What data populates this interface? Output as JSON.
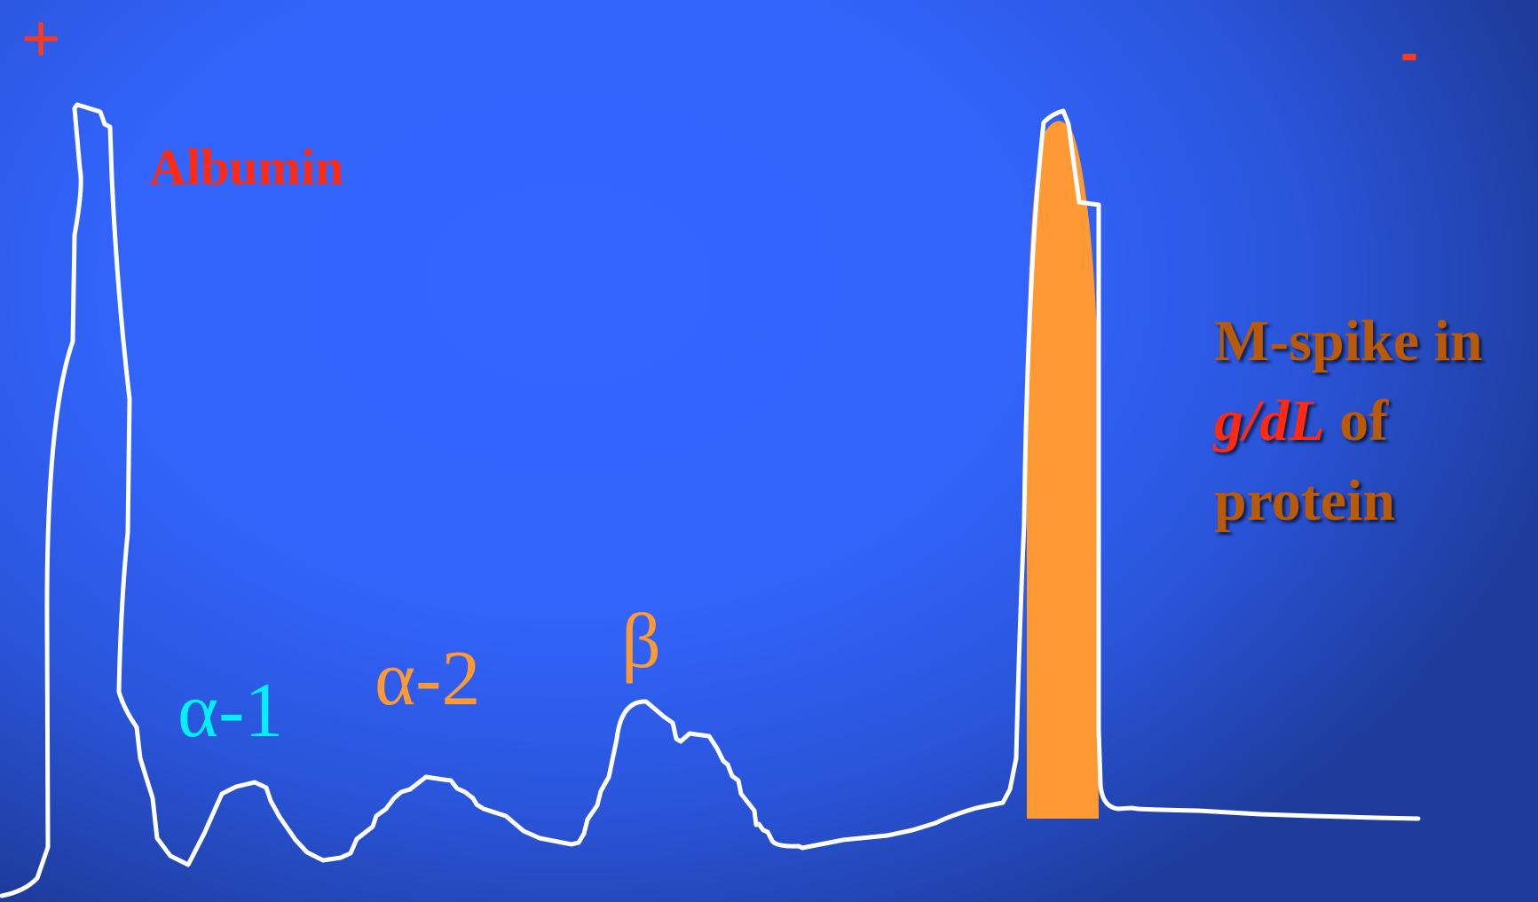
{
  "signs": {
    "anode": "+",
    "cathode": "-"
  },
  "labels": {
    "albumin": "Albumin",
    "alpha1": "α-1",
    "alpha2": "α-2",
    "beta": "β"
  },
  "annotation": {
    "line1": "M-spike in",
    "unit": "g/dL",
    "line2_rest": " of",
    "line3": "protein"
  },
  "colors": {
    "background": "#3366ff",
    "trace": "#ffffff",
    "m_spike_fill": "#ff9933",
    "sign_red": "#ff3a1a",
    "albumin_red": "#ff2a10",
    "alpha1_cyan": "#00f0ff",
    "alpha2_orange": "#ff9933",
    "beta_orange": "#ff9933",
    "annotation_brown": "#b85a08"
  }
}
